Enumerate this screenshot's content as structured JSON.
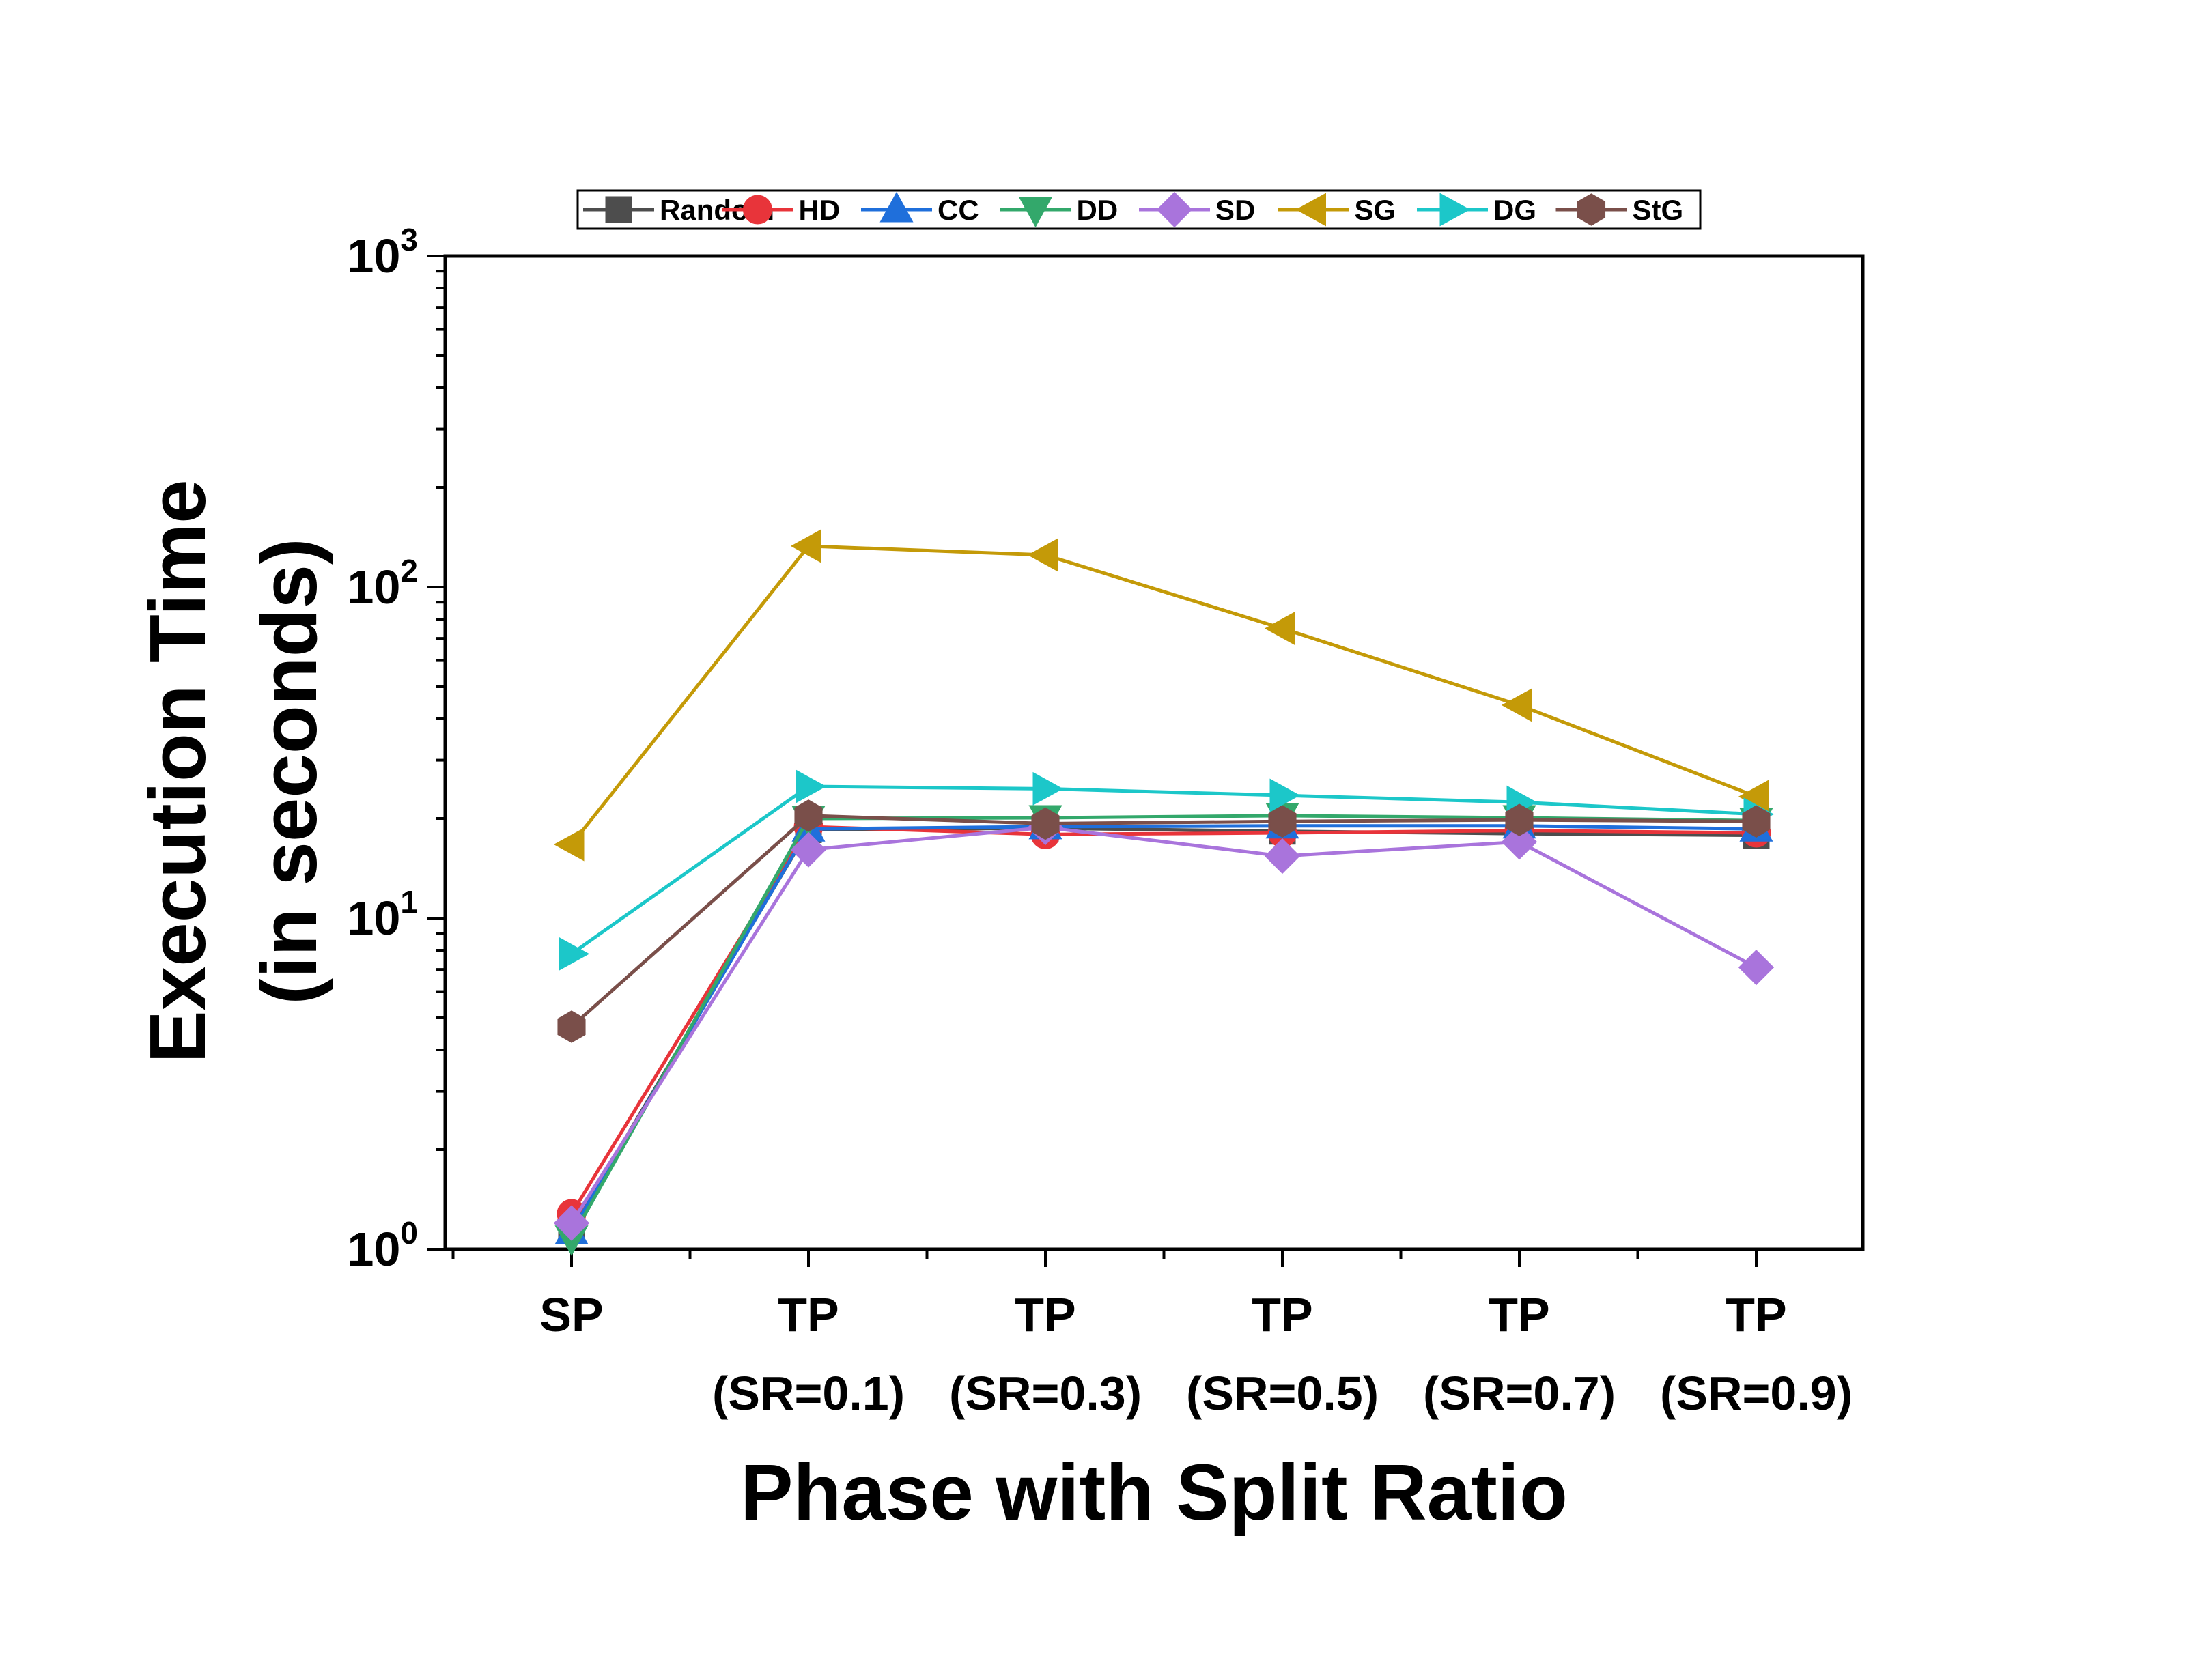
{
  "chart_data": {
    "type": "line",
    "xlabel": "Phase with Split Ratio",
    "ylabel_line1": "Execution Time",
    "ylabel_line2": "(in seconds)",
    "yscale": "log",
    "ylim": [
      1,
      1000
    ],
    "yticks": [
      {
        "base": "10",
        "exp": "0"
      },
      {
        "base": "10",
        "exp": "1"
      },
      {
        "base": "10",
        "exp": "2"
      },
      {
        "base": "10",
        "exp": "3"
      }
    ],
    "grid": false,
    "legend_position": "top",
    "categories": [
      {
        "line1": "SP",
        "line2": ""
      },
      {
        "line1": "TP",
        "line2": "(SR=0.1)"
      },
      {
        "line1": "TP",
        "line2": "(SR=0.3)"
      },
      {
        "line1": "TP",
        "line2": "(SR=0.5)"
      },
      {
        "line1": "TP",
        "line2": "(SR=0.7)"
      },
      {
        "line1": "TP",
        "line2": "(SR=0.9)"
      }
    ],
    "series": [
      {
        "name": "Random",
        "color": "#4d4d4d",
        "marker": "square",
        "values": [
          1.15,
          18.5,
          18.7,
          18.3,
          18.0,
          17.8
        ]
      },
      {
        "name": "HD",
        "color": "#e8343a",
        "marker": "circle",
        "values": [
          1.28,
          18.9,
          17.9,
          18.1,
          18.4,
          18.1
        ]
      },
      {
        "name": "CC",
        "color": "#1f6fdb",
        "marker": "triangle-up",
        "values": [
          1.13,
          18.6,
          18.9,
          19.0,
          19.0,
          18.6
        ]
      },
      {
        "name": "DD",
        "color": "#33a86b",
        "marker": "triangle-down",
        "values": [
          1.08,
          20.0,
          20.1,
          20.4,
          20.1,
          19.7
        ]
      },
      {
        "name": "SD",
        "color": "#a974dc",
        "marker": "diamond",
        "values": [
          1.2,
          16.1,
          18.8,
          15.4,
          17.0,
          7.1
        ]
      },
      {
        "name": "SG",
        "color": "#c49a08",
        "marker": "triangle-left",
        "values": [
          16.7,
          133,
          125,
          75,
          44,
          23.3
        ]
      },
      {
        "name": "DG",
        "color": "#1cc7c9",
        "marker": "triangle-right",
        "values": [
          7.8,
          25.0,
          24.6,
          23.5,
          22.4,
          20.6
        ]
      },
      {
        "name": "StG",
        "color": "#7a4f4a",
        "marker": "hexagon",
        "values": [
          4.7,
          20.4,
          19.3,
          19.6,
          19.8,
          19.6
        ]
      }
    ]
  }
}
